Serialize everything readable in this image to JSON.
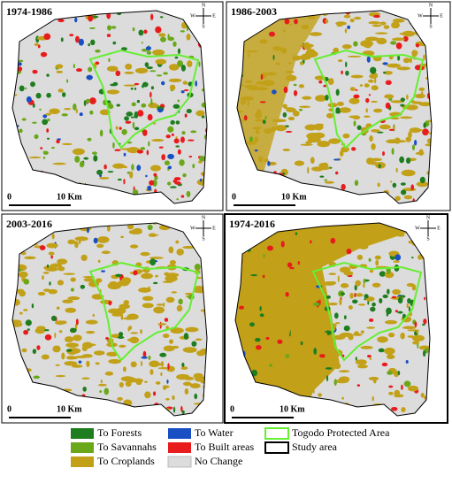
{
  "panels": [
    {
      "title": "1974-1986",
      "scale": {
        "start": "0",
        "end": "10 Km"
      },
      "compass": {
        "n": "N",
        "e": "E",
        "s": "S",
        "w": "W"
      }
    },
    {
      "title": "1986-2003",
      "scale": {
        "start": "0",
        "end": "10 Km"
      },
      "compass": {
        "n": "N",
        "e": "E",
        "s": "S",
        "w": "W"
      }
    },
    {
      "title": "2003-2016",
      "scale": {
        "start": "0",
        "end": "10 Km"
      },
      "compass": {
        "n": "N",
        "e": "E",
        "s": "S",
        "w": "W"
      }
    },
    {
      "title": "1974-2016",
      "scale": {
        "start": "0",
        "end": "10 Km"
      },
      "compass": {
        "n": "N",
        "e": "E",
        "s": "S",
        "w": "W"
      }
    }
  ],
  "legend": [
    {
      "label": "To Forests",
      "color": "#1e7d1e"
    },
    {
      "label": "To Savannahs",
      "color": "#6aa81a"
    },
    {
      "label": "To Croplands",
      "color": "#c2a018"
    },
    {
      "label": "To Water",
      "color": "#1a4fc4"
    },
    {
      "label": "To Built areas",
      "color": "#e81c1c"
    },
    {
      "label": "No Change",
      "color": "#dcdcdc"
    },
    {
      "label": "Togodo Protected Area",
      "color": "#66ee33",
      "outline": true
    },
    {
      "label": "Study area",
      "color": "#000000",
      "outline": true
    }
  ]
}
